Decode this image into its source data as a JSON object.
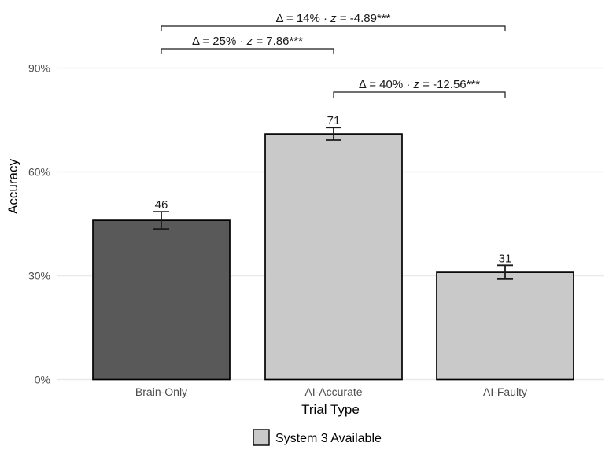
{
  "chart_data": {
    "type": "bar",
    "title": "",
    "xlabel": "Trial Type",
    "ylabel": "Accuracy",
    "categories": [
      "Brain-Only",
      "AI-Accurate",
      "AI-Faulty"
    ],
    "values": [
      46,
      71,
      31
    ],
    "errors": [
      2.5,
      1.8,
      2.0
    ],
    "bar_labels": [
      "46",
      "71",
      "31"
    ],
    "bar_colors": [
      "#595959",
      "#C9C9C9",
      "#C9C9C9"
    ],
    "y_tick_values": [
      0,
      30,
      60,
      90
    ],
    "y_tick_labels": [
      "0%",
      "30%",
      "60%",
      "90%"
    ],
    "ylim": [
      0,
      105
    ],
    "grid": "horizontal",
    "legend_position": "bottom",
    "annotations": [
      {
        "label": "Δ = 14% · z = -4.89***",
        "from": 0,
        "to": 2
      },
      {
        "label": "Δ = 25% · z = 7.86***",
        "from": 0,
        "to": 1
      },
      {
        "label": "Δ = 40% · z = -12.56***",
        "from": 1,
        "to": 2
      }
    ],
    "legend": {
      "label": "System 3 Available",
      "swatch_color": "#C9C9C9",
      "swatch_border": "#000000"
    },
    "colors": {
      "outline": "#000000",
      "gridline": "#E9E9E9",
      "tick_text": "#4D4D4D",
      "annotation_text": "#1A1A1A",
      "error_bar": "#1A1A1A",
      "value_text": "#1A1A1A",
      "background": "#FFFFFF"
    }
  }
}
